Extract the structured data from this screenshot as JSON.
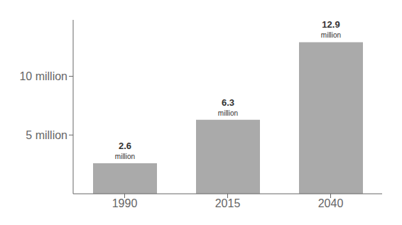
{
  "chart_data": {
    "type": "bar",
    "categories": [
      "1990",
      "2015",
      "2040"
    ],
    "values": [
      2.6,
      6.3,
      12.9
    ],
    "value_labels": [
      "2.6 million",
      "6.3 million",
      "12.9 million"
    ],
    "data_labels": true,
    "color": "#aaaaaa",
    "ylim": [
      0,
      14.8
    ],
    "yticks": [
      {
        "value": 5,
        "label": "5 million"
      },
      {
        "value": 10,
        "label": "10 million"
      }
    ],
    "grid": false
  }
}
